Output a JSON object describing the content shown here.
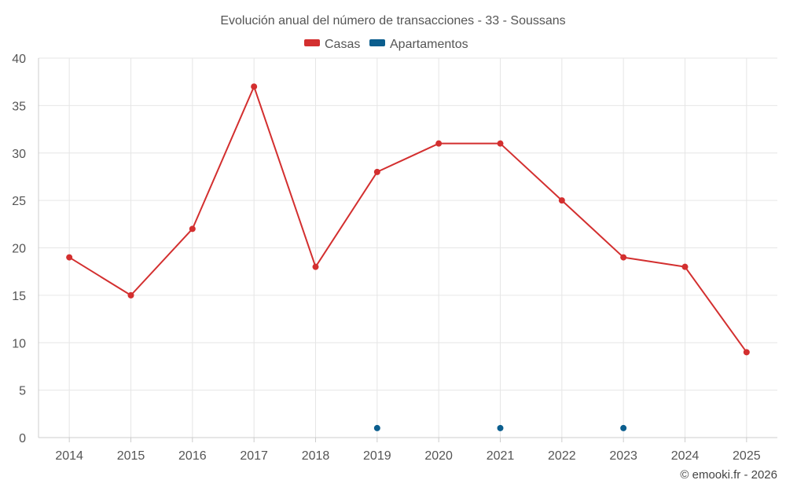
{
  "chart_data": {
    "type": "line",
    "title": "Evolución anual del número de transacciones - 33 - Soussans",
    "xlabel": "",
    "ylabel": "",
    "categories": [
      "2014",
      "2015",
      "2016",
      "2017",
      "2018",
      "2019",
      "2020",
      "2021",
      "2022",
      "2023",
      "2024",
      "2025"
    ],
    "ylim": [
      0,
      40
    ],
    "yticks": [
      0,
      5,
      10,
      15,
      20,
      25,
      30,
      35,
      40
    ],
    "grid": true,
    "legend_position": "top-center",
    "series": [
      {
        "name": "Casas",
        "color": "#d32f2f",
        "values": [
          19,
          15,
          22,
          37,
          18,
          28,
          31,
          31,
          25,
          19,
          18,
          9
        ]
      },
      {
        "name": "Apartamentos",
        "color": "#0b5e8e",
        "values": [
          null,
          null,
          null,
          null,
          null,
          1,
          null,
          1,
          null,
          1,
          null,
          null
        ]
      }
    ]
  },
  "credit": "© emooki.fr - 2026"
}
